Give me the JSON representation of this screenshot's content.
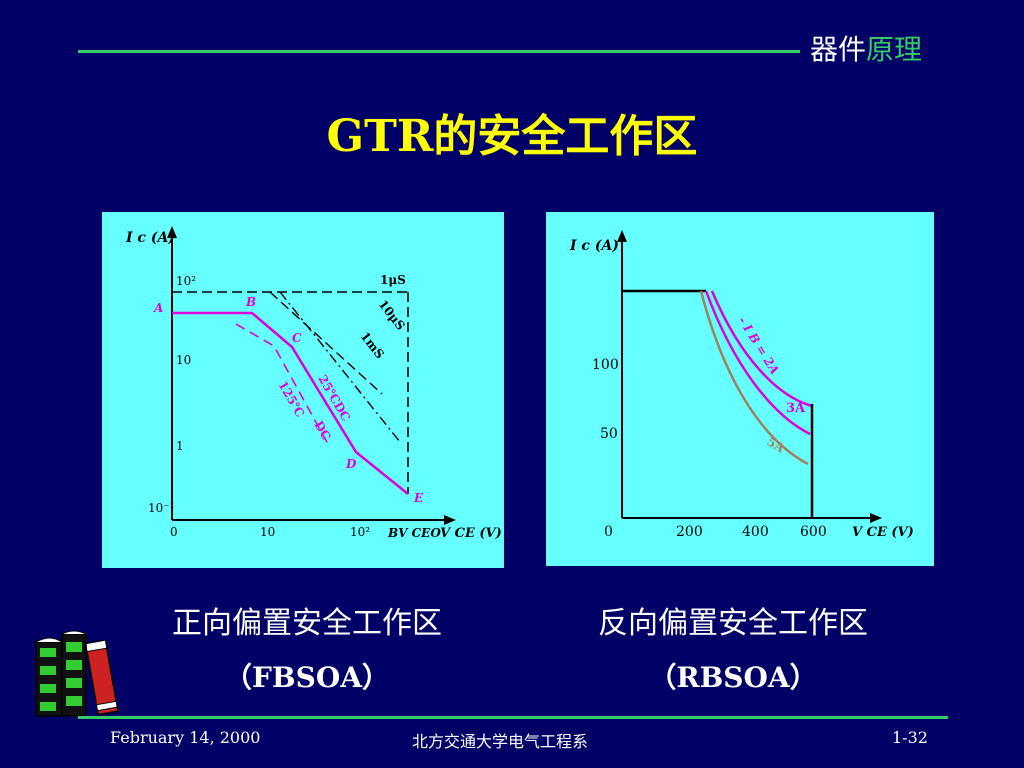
{
  "header": {
    "topic_a": "器件",
    "topic_b": "原理",
    "title": "GTR的安全工作区"
  },
  "fbsoa": {
    "axis_y": "I c (A)",
    "axis_x": "V CE (V)",
    "y_ticks": [
      "10²",
      "10",
      "1",
      "10⁻¹"
    ],
    "x_ticks": [
      "0",
      "10",
      "10²"
    ],
    "bv_label": "BV CEO",
    "points": [
      "A",
      "B",
      "C",
      "D",
      "E"
    ],
    "pulse_labels": [
      "1μS",
      "10μS",
      "1mS"
    ],
    "curve_25": "25℃DC",
    "curve_125": "125℃",
    "curve_125_dc": "DC",
    "caption": "正向偏置安全工作区",
    "caption_sub": "（FBSOA）"
  },
  "rbsoa": {
    "axis_y": "I c (A)",
    "axis_x": "V CE (V)",
    "y_ticks": [
      "100",
      "50",
      "0"
    ],
    "x_ticks": [
      "200",
      "400",
      "600"
    ],
    "curve_ib": "- I B = 2A",
    "curve_3a": "3A",
    "curve_5a": "5A",
    "caption": "反向偏置安全工作区",
    "caption_sub": "（RBSOA）"
  },
  "footer": {
    "date": "February 14, 2000",
    "org": "北方交通大学电气工程系",
    "page": "1-32"
  },
  "colors": {
    "magenta": "#dd00dd",
    "tan": "#a08060",
    "panel": "#66ffff",
    "green": "#33cc66"
  }
}
